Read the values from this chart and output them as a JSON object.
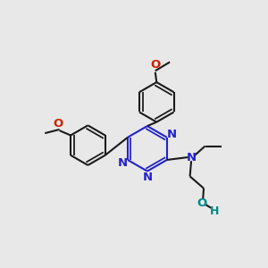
{
  "bg_color": "#e8e8e8",
  "bond_color": "#1a1a1a",
  "n_color": "#2222cc",
  "o_color": "#cc2200",
  "oh_color": "#008888",
  "lw": 1.5,
  "fs": 9.5,
  "xlim": [
    0,
    10
  ],
  "ylim": [
    0,
    10
  ]
}
